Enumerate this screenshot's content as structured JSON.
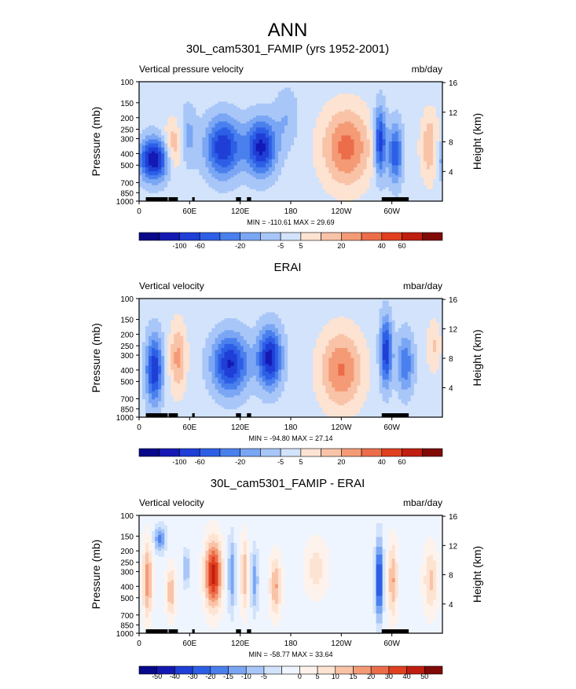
{
  "page_title": "ANN",
  "scale_colors": {
    "main": [
      "#08088a",
      "#1419b4",
      "#1f3fd6",
      "#2d5fe6",
      "#4a80ee",
      "#7aa6f4",
      "#a8c6f8",
      "#d2e3fb",
      "#fde3d2",
      "#f9c3a8",
      "#f49b76",
      "#ec6d4a",
      "#e0401f",
      "#c01e10",
      "#7f0a06"
    ],
    "diff": [
      "#08088a",
      "#1419b4",
      "#1f3fd6",
      "#2d5fe6",
      "#4a80ee",
      "#7aa6f4",
      "#a8c6f8",
      "#d2e3fb",
      "#eff5fe",
      "#fef3ec",
      "#fde3d2",
      "#f9c3a8",
      "#f49b76",
      "#ec6d4a",
      "#e0401f",
      "#c01e10",
      "#7f0a06"
    ]
  },
  "chart_data": [
    {
      "type": "heatmap",
      "title": "30L_cam5301_FAMIP (yrs 1952-2001)",
      "left_label": "Vertical pressure velocity",
      "right_label": "mb/day",
      "ylabel": "Pressure (mb)",
      "y2label": "Height (km)",
      "stats": "MIN = -110.61  MAX =  29.69",
      "x_ticks": [
        "0",
        "60E",
        "120E",
        "180",
        "120W",
        "60W"
      ],
      "y_ticks": [
        "100",
        "150",
        "200",
        "250",
        "300",
        "400",
        "500",
        "700",
        "850",
        "1000"
      ],
      "y2_ticks": [
        "16",
        "12",
        "8",
        "4"
      ],
      "colorbar_labels": [
        "-100",
        "-60",
        "-20",
        "-5",
        "5",
        "20",
        "40",
        "60"
      ],
      "colorbar_values": [
        -120,
        -100,
        -80,
        -60,
        -40,
        -20,
        -10,
        -5,
        0,
        5,
        10,
        20,
        30,
        40,
        60
      ],
      "scale": "main",
      "pressure_range": [
        1000,
        100
      ],
      "longitude_range": [
        0,
        360
      ],
      "grid": false,
      "features": [
        {
          "lon": 18,
          "lev": 0.35,
          "width": 26,
          "depth": 0.25,
          "amp": -6.4,
          "sharp": 2
        },
        {
          "lon": 40,
          "lev": 0.45,
          "width": 16,
          "depth": 0.3,
          "amp": 2.8,
          "sharp": 2
        },
        {
          "lon": 58,
          "lev": 0.55,
          "width": 14,
          "depth": 0.35,
          "amp": -1.8,
          "sharp": 2
        },
        {
          "lon": 100,
          "lev": 0.45,
          "width": 30,
          "depth": 0.35,
          "amp": -5.4,
          "sharp": 2
        },
        {
          "lon": 145,
          "lev": 0.45,
          "width": 25,
          "depth": 0.33,
          "amp": -5.8,
          "sharp": 2
        },
        {
          "lon": 175,
          "lev": 0.7,
          "width": 20,
          "depth": 0.35,
          "amp": -1.4,
          "sharp": 2
        },
        {
          "lon": 246,
          "lev": 0.45,
          "width": 40,
          "depth": 0.45,
          "amp": 3.9,
          "sharp": 2
        },
        {
          "lon": 286,
          "lev": 0.5,
          "width": 10,
          "depth": 0.4,
          "amp": -5.4,
          "sharp": 2
        },
        {
          "lon": 304,
          "lev": 0.4,
          "width": 12,
          "depth": 0.35,
          "amp": -4.4,
          "sharp": 2
        },
        {
          "lon": 345,
          "lev": 0.45,
          "width": 15,
          "depth": 0.4,
          "amp": 2.5,
          "sharp": 2
        }
      ]
    },
    {
      "type": "heatmap",
      "title": "ERAI",
      "left_label": "Vertical velocity",
      "right_label": "mbar/day",
      "ylabel": "Pressure (mb)",
      "y2label": "Height (km)",
      "stats": "MIN = -94.80  MAX = 27.14",
      "x_ticks": [
        "0",
        "60E",
        "120E",
        "180",
        "120W",
        "60W"
      ],
      "y_ticks": [
        "100",
        "150",
        "200",
        "250",
        "300",
        "400",
        "500",
        "700",
        "850",
        "1000"
      ],
      "y2_ticks": [
        "16",
        "12",
        "8",
        "4"
      ],
      "colorbar_labels": [
        "-100",
        "-60",
        "-20",
        "-5",
        "5",
        "20",
        "40",
        "60"
      ],
      "colorbar_values": [
        -120,
        -100,
        -80,
        -60,
        -40,
        -20,
        -10,
        -5,
        0,
        5,
        10,
        20,
        30,
        40,
        60
      ],
      "scale": "main",
      "pressure_range": [
        1000,
        100
      ],
      "longitude_range": [
        0,
        360
      ],
      "grid": false,
      "features": [
        {
          "lon": 18,
          "lev": 0.4,
          "width": 14,
          "depth": 0.4,
          "amp": -5.4,
          "sharp": 2
        },
        {
          "lon": 46,
          "lev": 0.5,
          "width": 14,
          "depth": 0.4,
          "amp": 2.8,
          "sharp": 2
        },
        {
          "lon": 108,
          "lev": 0.45,
          "width": 30,
          "depth": 0.35,
          "amp": -5.6,
          "sharp": 2
        },
        {
          "lon": 155,
          "lev": 0.5,
          "width": 20,
          "depth": 0.35,
          "amp": -6.0,
          "sharp": 2
        },
        {
          "lon": 240,
          "lev": 0.4,
          "width": 35,
          "depth": 0.45,
          "amp": 3.6,
          "sharp": 2
        },
        {
          "lon": 293,
          "lev": 0.55,
          "width": 10,
          "depth": 0.4,
          "amp": -5.4,
          "sharp": 2
        },
        {
          "lon": 316,
          "lev": 0.45,
          "width": 14,
          "depth": 0.35,
          "amp": -3.4,
          "sharp": 2
        },
        {
          "lon": 350,
          "lev": 0.6,
          "width": 12,
          "depth": 0.3,
          "amp": 1.6,
          "sharp": 2
        }
      ]
    },
    {
      "type": "heatmap",
      "title": "30L_cam5301_FAMIP - ERAI",
      "left_label": "Vertical velocity",
      "right_label": "mbar/day",
      "ylabel": "Pressure (mb)",
      "y2label": "Height (km)",
      "stats": "MIN = -58.77  MAX = 33.64",
      "x_ticks": [
        "0",
        "60E",
        "120E",
        "180",
        "120W",
        "60W"
      ],
      "y_ticks": [
        "100",
        "150",
        "200",
        "250",
        "300",
        "400",
        "500",
        "700",
        "850",
        "1000"
      ],
      "y2_ticks": [
        "16",
        "12",
        "8",
        "4"
      ],
      "colorbar_labels": [
        "-50",
        "-40",
        "-30",
        "-20",
        "-15",
        "-10",
        "-5",
        "0",
        "5",
        "10",
        "15",
        "20",
        "30",
        "40",
        "50"
      ],
      "colorbar_values": [
        -60,
        -50,
        -40,
        -30,
        -20,
        -15,
        -10,
        -5,
        0,
        5,
        10,
        15,
        20,
        30,
        40,
        50,
        60
      ],
      "scale": "diff",
      "pressure_range": [
        1000,
        100
      ],
      "longitude_range": [
        0,
        360
      ],
      "grid": false,
      "features": [
        {
          "lon": 10,
          "lev": 0.45,
          "width": 8,
          "depth": 0.45,
          "amp": 4.2,
          "sharp": 2
        },
        {
          "lon": 25,
          "lev": 0.8,
          "width": 10,
          "depth": 0.15,
          "amp": -3.8,
          "sharp": 2
        },
        {
          "lon": 38,
          "lev": 0.35,
          "width": 8,
          "depth": 0.3,
          "amp": 3.4,
          "sharp": 2
        },
        {
          "lon": 56,
          "lev": 0.55,
          "width": 5,
          "depth": 0.2,
          "amp": -3.0,
          "sharp": 2
        },
        {
          "lon": 88,
          "lev": 0.5,
          "width": 14,
          "depth": 0.4,
          "amp": 7.2,
          "sharp": 2
        },
        {
          "lon": 110,
          "lev": 0.5,
          "width": 6,
          "depth": 0.4,
          "amp": -3.6,
          "sharp": 2
        },
        {
          "lon": 125,
          "lev": 0.5,
          "width": 6,
          "depth": 0.45,
          "amp": 3.4,
          "sharp": 2
        },
        {
          "lon": 137,
          "lev": 0.45,
          "width": 6,
          "depth": 0.35,
          "amp": -3.2,
          "sharp": 2
        },
        {
          "lon": 162,
          "lev": 0.4,
          "width": 10,
          "depth": 0.35,
          "amp": 3.6,
          "sharp": 2
        },
        {
          "lon": 210,
          "lev": 0.55,
          "width": 20,
          "depth": 0.35,
          "amp": 2.0,
          "sharp": 2
        },
        {
          "lon": 285,
          "lev": 0.45,
          "width": 6,
          "depth": 0.45,
          "amp": -6.6,
          "sharp": 2
        },
        {
          "lon": 301,
          "lev": 0.45,
          "width": 8,
          "depth": 0.45,
          "amp": 3.6,
          "sharp": 2
        },
        {
          "lon": 346,
          "lev": 0.45,
          "width": 12,
          "depth": 0.4,
          "amp": 2.8,
          "sharp": 2
        }
      ]
    }
  ]
}
